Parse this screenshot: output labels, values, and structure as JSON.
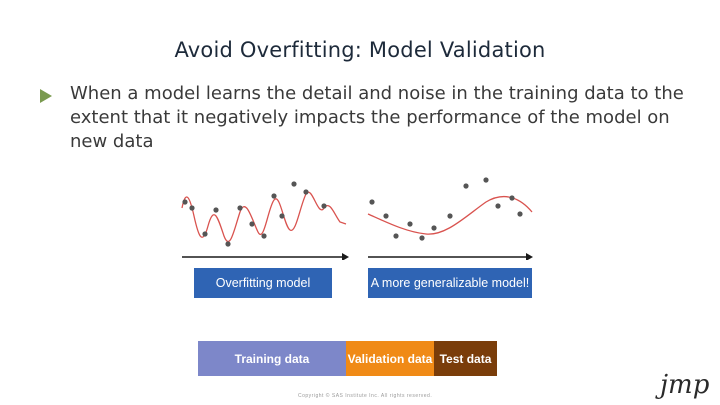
{
  "slide": {
    "title": "Avoid Overfitting: Model Validation",
    "bullet": "When a model learns the detail and noise in the training data to the extent that it negatively impacts the performance of the model on new data"
  },
  "figures": {
    "left_caption": "Overfitting model",
    "right_caption": "A more generalizable model!"
  },
  "data_split": {
    "training_label": "Training data",
    "validation_label": "Validation data",
    "test_label": "Test data"
  },
  "footer": {
    "copyright": "Copyright © SAS Institute Inc. All rights reserved."
  },
  "logo": {
    "text": "jmp"
  },
  "colors": {
    "accent_green": "#7a9a4f",
    "caption_blue": "#2f64b4",
    "training": "#7d87c9",
    "validation": "#f08a16",
    "test": "#7a3d0a",
    "curve": "#d9534f"
  }
}
